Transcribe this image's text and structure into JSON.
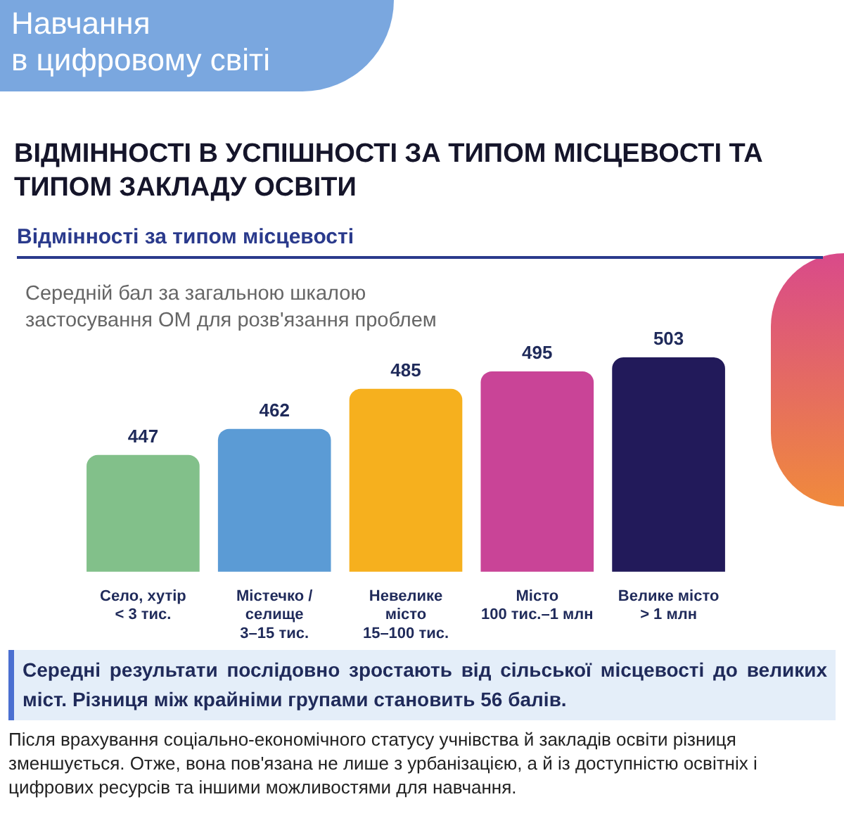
{
  "chart_data": {
    "type": "bar",
    "title": "ВІДМІННОСТІ В УСПІШНОСТІ ЗА ТИПОМ МІСЦЕВОСТІ ТА ТИПОМ ЗАКЛАДУ ОСВІТИ",
    "subtitle": "Відмінності за типом місцевості",
    "ylabel": "Середній бал за загальною шкалою застосування ОМ для розв'язання проблем",
    "categories": [
      "Село, хутір\n< 3 тис.",
      "Містечко /\nселище\n3–15 тис.",
      "Невелике\nмісто\n15–100 тис.",
      "Місто\n100 тис.–1 млн",
      "Велике місто\n> 1 млн"
    ],
    "values": [
      447,
      462,
      485,
      495,
      503
    ],
    "colors": [
      "#82c08a",
      "#5b9bd5",
      "#f6b01e",
      "#c94497",
      "#221a5a"
    ],
    "tick_labels": "x",
    "data_labels": true,
    "annotations": [
      "Навчання\nв цифровому світі",
      "Середні результати послідовно зростають від сільської місцевості до великих міст. Різниця між крайніми групами становить 56 балів.",
      "Після врахування соціально-економічного статусу учнівства й закладів освіти різниця зменшується. Отже, вона пов'язана не лише з урбанізацією, а й із доступністю освітніх і цифрових ресурсів та іншими можливостями для навчання."
    ]
  }
}
